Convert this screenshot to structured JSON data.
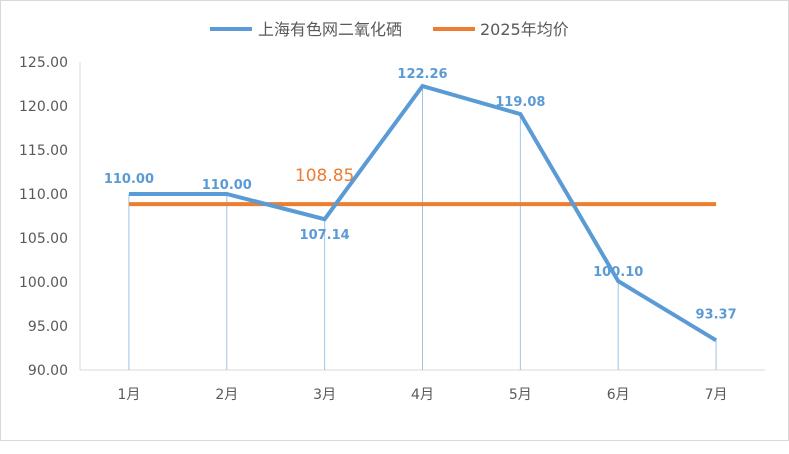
{
  "chart_data": {
    "type": "line",
    "categories": [
      "1月",
      "2月",
      "3月",
      "4月",
      "5月",
      "6月",
      "7月"
    ],
    "series": [
      {
        "name": "上海有色网二氧化硒",
        "color": "#5B9BD5",
        "values": [
          110.0,
          110.0,
          107.14,
          122.26,
          119.08,
          100.1,
          93.37
        ],
        "labels": [
          "110.00",
          "110.00",
          "107.14",
          "122.26",
          "119.08",
          "100.10",
          "93.37"
        ]
      },
      {
        "name": "2025年均价",
        "color": "#ED7D31",
        "values": [
          108.85,
          108.85,
          108.85,
          108.85,
          108.85,
          108.85,
          108.85
        ],
        "label": "108.85"
      }
    ],
    "yticks": [
      "90.00",
      "95.00",
      "100.00",
      "105.00",
      "110.00",
      "115.00",
      "120.00",
      "125.00"
    ],
    "ylim": [
      90,
      125
    ],
    "grid": false,
    "legend": "top"
  }
}
